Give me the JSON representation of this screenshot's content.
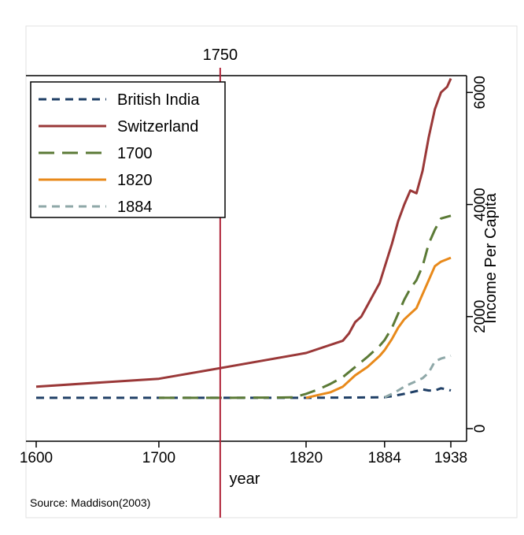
{
  "chart_data": {
    "type": "line",
    "xlabel": "year",
    "ylabel": "Income Per Capita",
    "xlim": [
      1600,
      1938
    ],
    "ylim": [
      0,
      6300
    ],
    "x_ticks": [
      1600,
      1700,
      1820,
      1884,
      1938
    ],
    "y_ticks": [
      0,
      2000,
      4000,
      6000
    ],
    "grid": false,
    "legend_position": "top-left",
    "top_marker": {
      "label": "1750",
      "x": 1750
    },
    "source_note": "Source: Maddison(2003)",
    "series": [
      {
        "name": "British India",
        "color": "#1f3f66",
        "dash": "dash",
        "points": [
          [
            1600,
            550
          ],
          [
            1700,
            550
          ],
          [
            1750,
            550
          ],
          [
            1820,
            550
          ],
          [
            1884,
            560
          ],
          [
            1890,
            580
          ],
          [
            1900,
            620
          ],
          [
            1910,
            670
          ],
          [
            1915,
            700
          ],
          [
            1920,
            680
          ],
          [
            1925,
            680
          ],
          [
            1930,
            720
          ],
          [
            1935,
            700
          ],
          [
            1938,
            680
          ]
        ]
      },
      {
        "name": "Switzerland",
        "color": "#9a3838",
        "dash": "solid",
        "points": [
          [
            1600,
            750
          ],
          [
            1700,
            890
          ],
          [
            1750,
            1080
          ],
          [
            1820,
            1350
          ],
          [
            1850,
            1570
          ],
          [
            1855,
            1700
          ],
          [
            1860,
            1900
          ],
          [
            1865,
            2000
          ],
          [
            1870,
            2200
          ],
          [
            1875,
            2400
          ],
          [
            1880,
            2600
          ],
          [
            1884,
            2880
          ],
          [
            1890,
            3300
          ],
          [
            1895,
            3700
          ],
          [
            1900,
            4000
          ],
          [
            1905,
            4250
          ],
          [
            1910,
            4200
          ],
          [
            1915,
            4600
          ],
          [
            1920,
            5200
          ],
          [
            1925,
            5700
          ],
          [
            1930,
            6000
          ],
          [
            1935,
            6100
          ],
          [
            1938,
            6250
          ]
        ]
      },
      {
        "name": "1700",
        "color": "#5b7a36",
        "dash": "longdash",
        "points": [
          [
            1700,
            550
          ],
          [
            1750,
            550
          ],
          [
            1800,
            555
          ],
          [
            1810,
            560
          ],
          [
            1820,
            620
          ],
          [
            1830,
            700
          ],
          [
            1840,
            800
          ],
          [
            1850,
            920
          ],
          [
            1860,
            1100
          ],
          [
            1870,
            1280
          ],
          [
            1880,
            1480
          ],
          [
            1884,
            1580
          ],
          [
            1890,
            1800
          ],
          [
            1895,
            2050
          ],
          [
            1900,
            2300
          ],
          [
            1905,
            2500
          ],
          [
            1910,
            2650
          ],
          [
            1915,
            2900
          ],
          [
            1920,
            3300
          ],
          [
            1925,
            3550
          ],
          [
            1930,
            3750
          ],
          [
            1938,
            3800
          ]
        ]
      },
      {
        "name": "1820",
        "color": "#e8891a",
        "dash": "solid",
        "points": [
          [
            1820,
            550
          ],
          [
            1830,
            600
          ],
          [
            1840,
            650
          ],
          [
            1850,
            750
          ],
          [
            1860,
            950
          ],
          [
            1870,
            1100
          ],
          [
            1880,
            1300
          ],
          [
            1884,
            1400
          ],
          [
            1890,
            1600
          ],
          [
            1895,
            1800
          ],
          [
            1900,
            1950
          ],
          [
            1905,
            2050
          ],
          [
            1910,
            2150
          ],
          [
            1915,
            2400
          ],
          [
            1920,
            2650
          ],
          [
            1925,
            2900
          ],
          [
            1930,
            2980
          ],
          [
            1938,
            3050
          ]
        ]
      },
      {
        "name": "1884",
        "color": "#8fa8a8",
        "dash": "dash",
        "points": [
          [
            1884,
            560
          ],
          [
            1890,
            620
          ],
          [
            1895,
            680
          ],
          [
            1900,
            750
          ],
          [
            1905,
            800
          ],
          [
            1910,
            850
          ],
          [
            1915,
            900
          ],
          [
            1920,
            1000
          ],
          [
            1925,
            1200
          ],
          [
            1930,
            1250
          ],
          [
            1938,
            1300
          ]
        ]
      }
    ]
  }
}
